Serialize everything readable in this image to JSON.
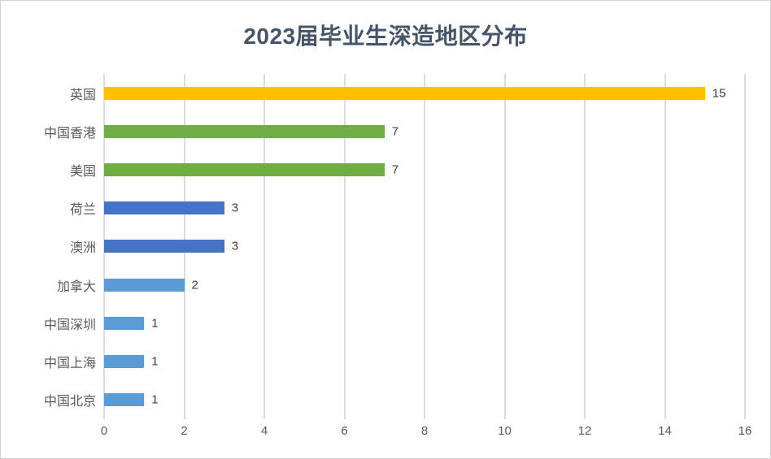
{
  "chart_data": {
    "type": "bar",
    "orientation": "horizontal",
    "title": "2023届毕业生深造地区分布",
    "categories": [
      "英国",
      "中国香港",
      "美国",
      "荷兰",
      "澳洲",
      "加拿大",
      "中国深圳",
      "中国上海",
      "中国北京"
    ],
    "values": [
      15,
      7,
      7,
      3,
      3,
      2,
      1,
      1,
      1
    ],
    "bar_colors": [
      "#FFC000",
      "#70AD47",
      "#70AD47",
      "#4472C4",
      "#4472C4",
      "#5B9BD5",
      "#5B9BD5",
      "#5B9BD5",
      "#5B9BD5"
    ],
    "data_labels": [
      15,
      7,
      7,
      3,
      3,
      2,
      1,
      1,
      1
    ],
    "xlabel": "",
    "ylabel": "",
    "xlim": [
      0,
      16
    ],
    "x_ticks": [
      0,
      2,
      4,
      6,
      8,
      10,
      12,
      14,
      16
    ],
    "grid": "vertical gridlines on",
    "legend": "none"
  },
  "colors": {
    "title_text": "#44546A",
    "category_label_text": "#595959",
    "tick_label_text": "#595959",
    "value_label_text": "#404040",
    "gridline": "#DCDCDC",
    "frame_border": "#D3D3D3",
    "background": "#FFFFFF"
  }
}
